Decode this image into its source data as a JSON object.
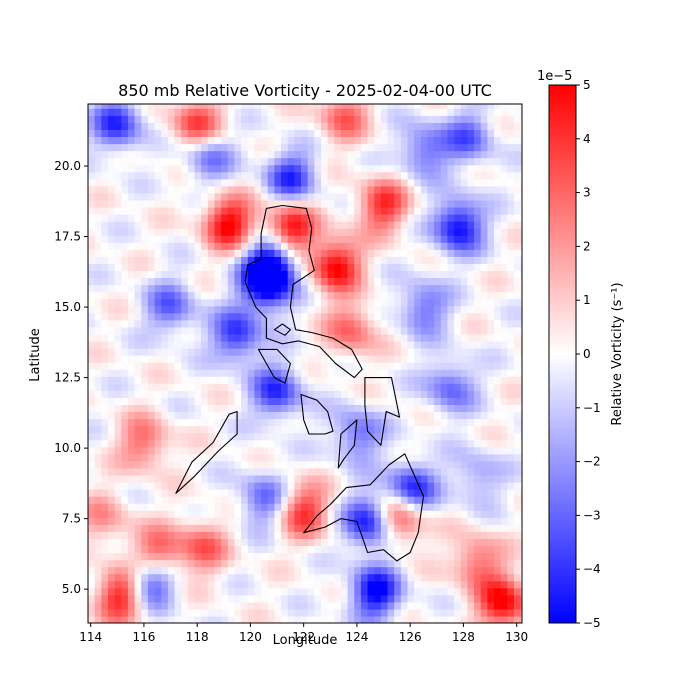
{
  "chart_data": {
    "type": "heatmap",
    "title": "850 mb Relative Vorticity - 2025-02-04-00 UTC",
    "xlabel": "Longitude",
    "ylabel": "Latitude",
    "xlim": [
      113.9,
      130.2
    ],
    "ylim": [
      3.8,
      22.2
    ],
    "x_ticks": [
      114,
      116,
      118,
      120,
      122,
      124,
      126,
      128,
      130
    ],
    "y_ticks": [
      5.0,
      7.5,
      10.0,
      12.5,
      15.0,
      17.5,
      20.0
    ],
    "x_tick_labels": [
      "114",
      "116",
      "118",
      "120",
      "122",
      "124",
      "126",
      "128",
      "130"
    ],
    "y_tick_labels": [
      "5.0",
      "7.5",
      "10.0",
      "12.5",
      "15.0",
      "17.5",
      "20.0"
    ],
    "colormap": "bwr",
    "color_low": "#0000ff",
    "color_mid": "#ffffff",
    "color_high": "#ff0000",
    "colorbar": {
      "label": "Relative Vorticity (s⁻¹)",
      "offset_text": "1e−5",
      "range": [
        -5,
        5
      ],
      "ticks": [
        5,
        4,
        3,
        2,
        1,
        0,
        -1,
        -2,
        -3,
        -4,
        -5
      ],
      "tick_labels": [
        "5",
        "4",
        "3",
        "2",
        "1",
        "0",
        "−1",
        "−2",
        "−3",
        "−4",
        "−5"
      ]
    },
    "grid": false,
    "field_features": [
      {
        "lon": 121.5,
        "lat": 17.8,
        "value": 5
      },
      {
        "lon": 119.2,
        "lat": 18.0,
        "value": 5
      },
      {
        "lon": 123.2,
        "lat": 16.5,
        "value": 5
      },
      {
        "lon": 125.0,
        "lat": 18.6,
        "value": 4
      },
      {
        "lon": 120.6,
        "lat": 15.8,
        "value": -5
      },
      {
        "lon": 120.8,
        "lat": 16.6,
        "value": -5
      },
      {
        "lon": 121.5,
        "lat": 19.6,
        "value": -4
      },
      {
        "lon": 118.4,
        "lat": 20.4,
        "value": -3
      },
      {
        "lon": 126.5,
        "lat": 20.6,
        "value": -3
      },
      {
        "lon": 127.8,
        "lat": 17.9,
        "value": -5
      },
      {
        "lon": 128.2,
        "lat": 21.0,
        "value": -3
      },
      {
        "lon": 115.0,
        "lat": 21.5,
        "value": -4
      },
      {
        "lon": 118.0,
        "lat": 21.5,
        "value": 4
      },
      {
        "lon": 123.5,
        "lat": 21.8,
        "value": 3
      },
      {
        "lon": 117.0,
        "lat": 15.0,
        "value": -3
      },
      {
        "lon": 119.5,
        "lat": 14.0,
        "value": -4
      },
      {
        "lon": 123.8,
        "lat": 14.2,
        "value": 3
      },
      {
        "lon": 121.0,
        "lat": 12.0,
        "value": -4
      },
      {
        "lon": 116.0,
        "lat": 10.2,
        "value": 3
      },
      {
        "lon": 120.5,
        "lat": 8.2,
        "value": -3
      },
      {
        "lon": 122.0,
        "lat": 7.8,
        "value": 4
      },
      {
        "lon": 124.5,
        "lat": 7.4,
        "value": -5
      },
      {
        "lon": 125.6,
        "lat": 7.6,
        "value": 5
      },
      {
        "lon": 126.0,
        "lat": 8.5,
        "value": -5
      },
      {
        "lon": 127.5,
        "lat": 12.2,
        "value": -3
      },
      {
        "lon": 128.5,
        "lat": 9.0,
        "value": -2
      },
      {
        "lon": 115.2,
        "lat": 4.8,
        "value": 5
      },
      {
        "lon": 116.2,
        "lat": 5.3,
        "value": -5
      },
      {
        "lon": 116.5,
        "lat": 6.2,
        "value": 4
      },
      {
        "lon": 118.2,
        "lat": 6.5,
        "value": 3
      },
      {
        "lon": 124.7,
        "lat": 4.9,
        "value": -5
      },
      {
        "lon": 129.5,
        "lat": 4.5,
        "value": 5
      },
      {
        "lon": 128.5,
        "lat": 6.0,
        "value": 3
      },
      {
        "lon": 126.5,
        "lat": 15.0,
        "value": -3
      },
      {
        "lon": 124.0,
        "lat": 10.5,
        "value": -3
      },
      {
        "lon": 114.5,
        "lat": 7.5,
        "value": 2
      }
    ],
    "coastlines": [
      [
        [
          120.6,
          18.5
        ],
        [
          121.2,
          18.6
        ],
        [
          122.1,
          18.5
        ],
        [
          122.3,
          17.8
        ],
        [
          122.2,
          17.0
        ],
        [
          122.4,
          16.3
        ],
        [
          121.6,
          15.8
        ],
        [
          121.5,
          15.0
        ],
        [
          121.7,
          14.2
        ],
        [
          122.3,
          14.1
        ],
        [
          123.1,
          13.9
        ],
        [
          123.8,
          13.5
        ],
        [
          124.2,
          12.8
        ],
        [
          123.9,
          12.5
        ],
        [
          123.2,
          13.0
        ],
        [
          122.6,
          13.6
        ],
        [
          121.8,
          13.8
        ],
        [
          121.2,
          13.7
        ],
        [
          120.6,
          13.9
        ],
        [
          120.6,
          14.6
        ],
        [
          120.2,
          15.0
        ],
        [
          119.8,
          15.9
        ],
        [
          119.9,
          16.5
        ],
        [
          120.4,
          16.7
        ],
        [
          120.4,
          17.6
        ],
        [
          120.6,
          18.5
        ]
      ],
      [
        [
          120.3,
          13.5
        ],
        [
          121.0,
          13.5
        ],
        [
          121.5,
          13.0
        ],
        [
          121.3,
          12.3
        ],
        [
          120.9,
          12.5
        ],
        [
          120.3,
          13.5
        ]
      ],
      [
        [
          117.2,
          8.4
        ],
        [
          117.9,
          9.0
        ],
        [
          118.8,
          9.9
        ],
        [
          119.5,
          10.5
        ],
        [
          119.5,
          11.3
        ],
        [
          119.2,
          11.2
        ],
        [
          118.6,
          10.2
        ],
        [
          117.8,
          9.5
        ],
        [
          117.2,
          8.4
        ]
      ],
      [
        [
          121.9,
          11.9
        ],
        [
          122.5,
          11.7
        ],
        [
          122.9,
          11.3
        ],
        [
          123.1,
          10.6
        ],
        [
          122.8,
          10.5
        ],
        [
          122.2,
          10.5
        ],
        [
          122.0,
          11.0
        ],
        [
          121.9,
          11.9
        ]
      ],
      [
        [
          123.4,
          10.5
        ],
        [
          124.0,
          11.0
        ],
        [
          123.9,
          10.1
        ],
        [
          123.5,
          9.6
        ],
        [
          123.3,
          9.3
        ],
        [
          123.4,
          10.5
        ]
      ],
      [
        [
          124.3,
          12.5
        ],
        [
          125.3,
          12.5
        ],
        [
          125.6,
          11.1
        ],
        [
          125.1,
          11.3
        ],
        [
          124.9,
          10.1
        ],
        [
          124.4,
          10.6
        ],
        [
          124.3,
          11.5
        ],
        [
          124.3,
          12.5
        ]
      ],
      [
        [
          122.0,
          7.0
        ],
        [
          122.5,
          7.6
        ],
        [
          123.0,
          8.0
        ],
        [
          123.6,
          8.6
        ],
        [
          124.5,
          8.7
        ],
        [
          125.2,
          9.4
        ],
        [
          125.8,
          9.8
        ],
        [
          126.5,
          8.3
        ],
        [
          126.3,
          7.0
        ],
        [
          126.0,
          6.3
        ],
        [
          125.5,
          6.0
        ],
        [
          125.0,
          6.4
        ],
        [
          124.4,
          6.3
        ],
        [
          124.0,
          7.4
        ],
        [
          123.4,
          7.5
        ],
        [
          122.8,
          7.2
        ],
        [
          122.0,
          7.0
        ]
      ],
      [
        [
          120.9,
          14.2
        ],
        [
          121.2,
          14.4
        ],
        [
          121.5,
          14.2
        ],
        [
          121.3,
          14.0
        ],
        [
          120.9,
          14.2
        ]
      ]
    ]
  }
}
